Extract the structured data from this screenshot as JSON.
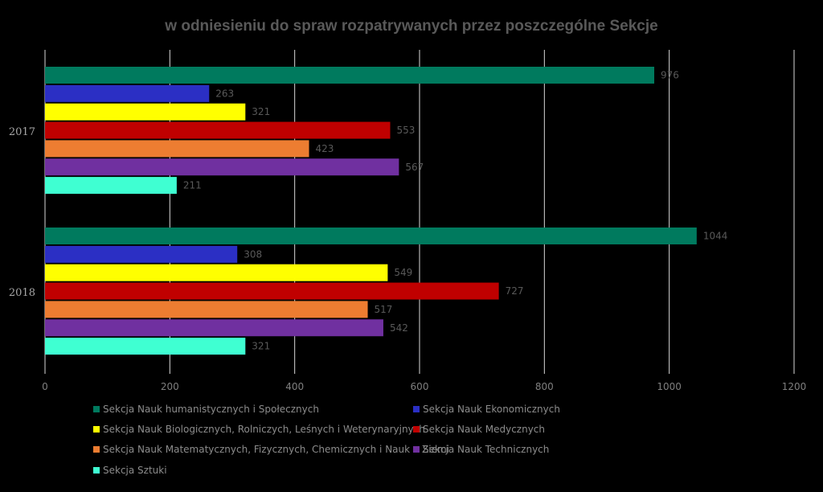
{
  "chart_data": {
    "type": "bar",
    "orientation": "horizontal",
    "title": "w odniesieniu do spraw rozpatrywanych przez poszczególne Sekcje",
    "categories": [
      "2017",
      "2018"
    ],
    "xlim": [
      0,
      1200
    ],
    "x_ticks": [
      "0",
      "200",
      "400",
      "600",
      "800",
      "1000",
      "1200"
    ],
    "grid": true,
    "legend_position": "bottom",
    "series": [
      {
        "name": "Sekcja Nauk humanistycznych i Społecznych",
        "color": "#007a5e",
        "values": [
          976,
          1044
        ],
        "labels": [
          "976",
          "1044"
        ]
      },
      {
        "name": "Sekcja Nauk Ekonomicznych",
        "color": "#2b2fc4",
        "values": [
          263,
          308
        ],
        "labels": [
          "263",
          "308"
        ]
      },
      {
        "name": "Sekcja Nauk Biologicznych, Rolniczych, Leśnych i Weterynaryjnych",
        "color": "#ffff00",
        "values": [
          321,
          549
        ],
        "labels": [
          "321",
          "549"
        ]
      },
      {
        "name": "Sekcja Nauk Medycznych",
        "color": "#c00000",
        "values": [
          553,
          727
        ],
        "labels": [
          "553",
          "727"
        ]
      },
      {
        "name": "Sekcja Nauk Matematycznych, Fizycznych, Chemicznych i Nauk o Ziemi",
        "color": "#ed7d31",
        "values": [
          423,
          517
        ],
        "labels": [
          "423",
          "517"
        ]
      },
      {
        "name": "Sekcja Nauk Technicznych",
        "color": "#7030a0",
        "values": [
          567,
          542
        ],
        "labels": [
          "567",
          "542"
        ]
      },
      {
        "name": "Sekcja Sztuki",
        "color": "#3fffd2",
        "values": [
          211,
          321
        ],
        "labels": [
          "211",
          "321"
        ]
      }
    ]
  }
}
